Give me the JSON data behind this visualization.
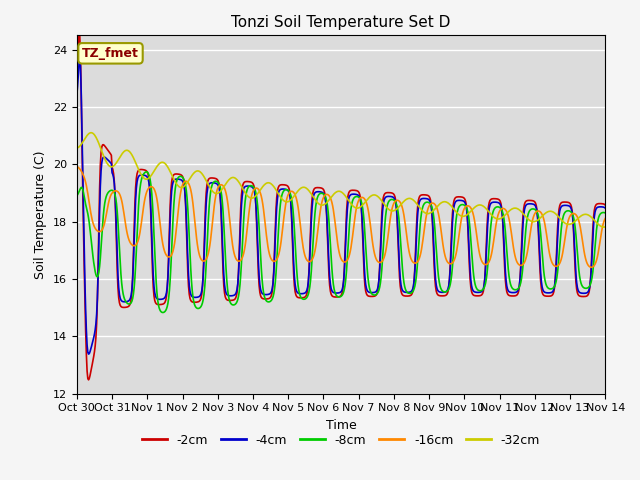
{
  "title": "Tonzi Soil Temperature Set D",
  "xlabel": "Time",
  "ylabel": "Soil Temperature (C)",
  "annotation": "TZ_fmet",
  "ylim": [
    12,
    24.5
  ],
  "series_labels": [
    "-2cm",
    "-4cm",
    "-8cm",
    "-16cm",
    "-32cm"
  ],
  "series_colors": [
    "#cc0000",
    "#0000cc",
    "#00cc00",
    "#ff8800",
    "#cccc00"
  ],
  "x_tick_labels": [
    "Oct 30",
    "Oct 31",
    "Nov 1",
    "Nov 2",
    "Nov 3",
    "Nov 4",
    "Nov 5",
    "Nov 6",
    "Nov 7",
    "Nov 8",
    "Nov 9",
    "Nov 10",
    "Nov 11",
    "Nov 12",
    "Nov 13",
    "Nov 14"
  ],
  "bg_color": "#dcdcdc",
  "linewidth": 1.2
}
